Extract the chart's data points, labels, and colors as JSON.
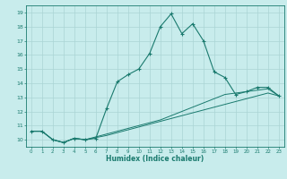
{
  "xlabel": "Humidex (Indice chaleur)",
  "ylabel": "",
  "bg_color": "#c8ecec",
  "grid_color": "#aad4d4",
  "line_color": "#1a7a6e",
  "xlim": [
    -0.5,
    23.5
  ],
  "ylim": [
    9.5,
    19.5
  ],
  "xticks": [
    0,
    1,
    2,
    3,
    4,
    5,
    6,
    7,
    8,
    9,
    10,
    11,
    12,
    13,
    14,
    15,
    16,
    17,
    18,
    19,
    20,
    21,
    22,
    23
  ],
  "yticks": [
    10,
    11,
    12,
    13,
    14,
    15,
    16,
    17,
    18,
    19
  ],
  "line1_x": [
    0,
    1,
    2,
    3,
    4,
    5,
    6,
    7,
    8,
    9,
    10,
    11,
    12,
    13,
    14,
    15,
    16,
    17,
    18,
    19,
    20,
    21,
    22,
    23
  ],
  "line1_y": [
    10.6,
    10.6,
    10.0,
    9.8,
    10.1,
    10.0,
    10.1,
    12.2,
    14.1,
    14.6,
    15.0,
    16.1,
    18.0,
    18.9,
    17.5,
    18.2,
    17.0,
    14.8,
    14.4,
    13.2,
    13.4,
    13.7,
    13.7,
    13.1
  ],
  "line2_x": [
    0,
    1,
    2,
    3,
    4,
    5,
    6,
    7,
    8,
    9,
    10,
    11,
    12,
    13,
    14,
    15,
    16,
    17,
    18,
    19,
    20,
    21,
    22,
    23
  ],
  "line2_y": [
    10.6,
    10.6,
    10.0,
    9.8,
    10.1,
    10.0,
    10.2,
    10.4,
    10.6,
    10.8,
    11.0,
    11.2,
    11.4,
    11.7,
    12.0,
    12.3,
    12.6,
    12.9,
    13.2,
    13.3,
    13.4,
    13.5,
    13.6,
    13.1
  ],
  "line3_x": [
    0,
    1,
    2,
    3,
    4,
    5,
    6,
    7,
    8,
    9,
    10,
    11,
    12,
    13,
    14,
    15,
    16,
    17,
    18,
    19,
    20,
    21,
    22,
    23
  ],
  "line3_y": [
    10.6,
    10.6,
    10.0,
    9.8,
    10.1,
    10.0,
    10.15,
    10.3,
    10.5,
    10.7,
    10.9,
    11.1,
    11.3,
    11.5,
    11.7,
    11.9,
    12.1,
    12.3,
    12.5,
    12.7,
    12.9,
    13.1,
    13.3,
    13.1
  ]
}
